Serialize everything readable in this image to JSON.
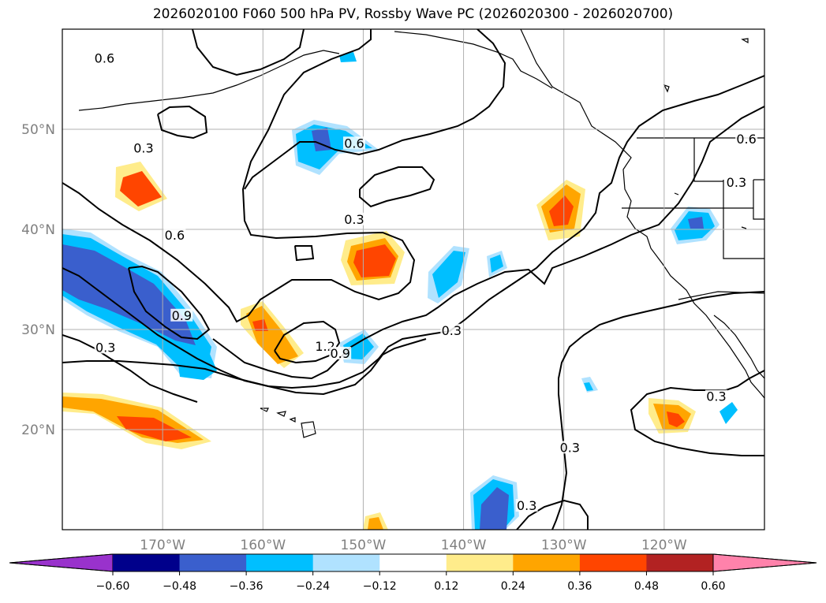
{
  "title": "2026020100 F060 500 hPa PV, Rossby Wave PC (2026020300 - 2026020700)",
  "map": {
    "lon_range": [
      -180,
      -110
    ],
    "lat_range": [
      10,
      60
    ],
    "lat_ticks": [
      {
        "value": 50,
        "label": "50°N"
      },
      {
        "value": 40,
        "label": "40°N"
      },
      {
        "value": 30,
        "label": "30°N"
      },
      {
        "value": 20,
        "label": "20°N"
      }
    ],
    "lon_ticks": [
      {
        "value": -170,
        "label": "170°W"
      },
      {
        "value": -160,
        "label": "160°W"
      },
      {
        "value": -150,
        "label": "150°W"
      },
      {
        "value": -140,
        "label": "140°W"
      },
      {
        "value": -130,
        "label": "130°W"
      },
      {
        "value": -120,
        "label": "120°W"
      }
    ],
    "grid": true,
    "contour_labels": [
      {
        "text": "0.6",
        "lon": -175.8,
        "lat": 56.9
      },
      {
        "text": "0.3",
        "lon": -171.9,
        "lat": 47.9
      },
      {
        "text": "0.6",
        "lon": -150.9,
        "lat": 48.4
      },
      {
        "text": "0.3",
        "lon": -150.9,
        "lat": 40.8
      },
      {
        "text": "0.6",
        "lon": -168.8,
        "lat": 39.2
      },
      {
        "text": "0.9",
        "lon": -168.1,
        "lat": 31.2
      },
      {
        "text": "0.3",
        "lon": -175.7,
        "lat": 28.0
      },
      {
        "text": "1.2",
        "lon": -153.8,
        "lat": 28.1
      },
      {
        "text": "0.9",
        "lon": -152.3,
        "lat": 27.4
      },
      {
        "text": "0.3",
        "lon": -141.2,
        "lat": 29.7
      },
      {
        "text": "0.3",
        "lon": -129.4,
        "lat": 18.0
      },
      {
        "text": "0.3",
        "lon": -133.7,
        "lat": 12.2
      },
      {
        "text": "0.3",
        "lon": -114.8,
        "lat": 23.1
      },
      {
        "text": "0.6",
        "lon": -111.8,
        "lat": 48.8
      },
      {
        "text": "0.3",
        "lon": -112.8,
        "lat": 44.5
      }
    ]
  },
  "colorbar": {
    "ticks": [
      "−0.60",
      "−0.48",
      "−0.36",
      "−0.24",
      "−0.12",
      "0.12",
      "0.24",
      "0.36",
      "0.48",
      "0.60"
    ],
    "colors": [
      "#9932cc",
      "#00008b",
      "#3a5fcd",
      "#00bfff",
      "#b0e2ff",
      "#ffffff",
      "#ffec8b",
      "#ffa500",
      "#ff4500",
      "#b22222",
      "#ff82ab"
    ],
    "extend": "both"
  }
}
